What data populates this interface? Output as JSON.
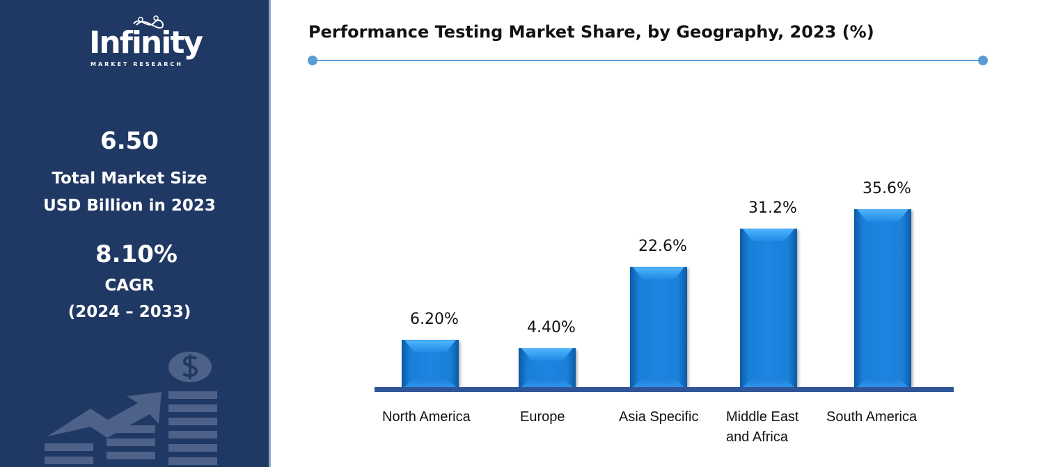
{
  "sidebar": {
    "logo": {
      "word": "Infinity",
      "sub": "MARKET RESEARCH"
    },
    "market_size": "6.50",
    "market_size_label_1": "Total Market Size",
    "market_size_label_2": "USD Billion in 2023",
    "cagr": "8.10%",
    "cagr_label": "CAGR",
    "cagr_period": "(2024 – 2033)",
    "decor_icon": "growth-chart-dollar-icon"
  },
  "chart_data": {
    "type": "bar",
    "title": "Performance Testing Market Share, by Geography, 2023 (%)",
    "categories": [
      "North America",
      "Europe",
      "Asia Specific",
      "Middle East and Africa",
      "South America"
    ],
    "values": [
      6.2,
      4.4,
      22.6,
      31.2,
      35.6
    ],
    "data_labels": [
      "6.20%",
      "4.40%",
      "22.6%",
      "31.2%",
      "35.6%"
    ],
    "bar_color": "#1c86e2",
    "axis_color": "#2f5597",
    "grid": false
  }
}
